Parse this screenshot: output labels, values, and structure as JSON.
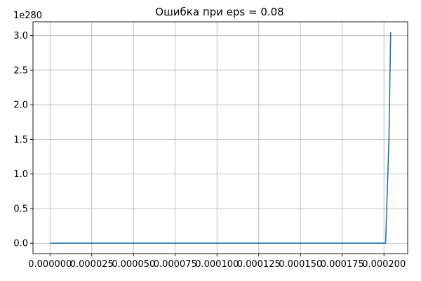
{
  "chart_data": {
    "type": "line",
    "title": "Ошибка при eps = 0.08",
    "xlabel": "",
    "ylabel": "",
    "y_offset_text": "1e280",
    "grid": true,
    "legend": "none",
    "xlim": [
      -1.02e-05,
      0.0002142
    ],
    "ylim": [
      -0.15,
      3.2
    ],
    "x_ticks": [
      {
        "value": 0.0,
        "label": "0.000000"
      },
      {
        "value": 2.5e-05,
        "label": "0.000025"
      },
      {
        "value": 5e-05,
        "label": "0.000050"
      },
      {
        "value": 7.5e-05,
        "label": "0.000075"
      },
      {
        "value": 0.0001,
        "label": "0.000100"
      },
      {
        "value": 0.000125,
        "label": "0.000125"
      },
      {
        "value": 0.00015,
        "label": "0.000150"
      },
      {
        "value": 0.000175,
        "label": "0.000175"
      },
      {
        "value": 0.0002,
        "label": "0.000200"
      }
    ],
    "y_ticks": [
      {
        "value": 0.0,
        "label": "0.0"
      },
      {
        "value": 0.5,
        "label": "0.5"
      },
      {
        "value": 1.0,
        "label": "1.0"
      },
      {
        "value": 1.5,
        "label": "1.5"
      },
      {
        "value": 2.0,
        "label": "2.0"
      },
      {
        "value": 2.5,
        "label": "2.5"
      },
      {
        "value": 3.0,
        "label": "3.0"
      }
    ],
    "series": [
      {
        "color": "#1f77b4",
        "x": [
          0.0,
          0.0002,
          0.000201,
          0.000203,
          0.000204
        ],
        "y": [
          0.0,
          0.0,
          0.0,
          1.5,
          3.05
        ]
      }
    ]
  }
}
